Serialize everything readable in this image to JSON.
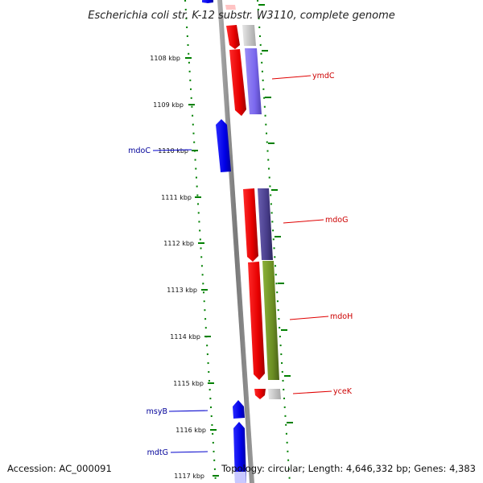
{
  "title": "Escherichia coli str. K-12 substr. W3110, complete genome",
  "footer": {
    "accession": "Accession: AC_000091",
    "topology": "Topology: circular; Length: 4,646,332 bp; Genes: 4,383"
  },
  "ticks": [
    "1108 kbp",
    "1109 kbp",
    "1110 kbp",
    "1111 kbp",
    "1112 kbp",
    "1113 kbp",
    "1114 kbp",
    "1115 kbp",
    "1116 kbp",
    "1117 kbp"
  ],
  "genes": {
    "ymdC": "ymdC",
    "mdoC": "mdoC",
    "mdoG": "mdoG",
    "mdoH": "mdoH",
    "yceK": "yceK",
    "msyB": "msyB",
    "mdtG": "mdtG"
  },
  "colors": {
    "forward_strand": "#ff0000",
    "reverse_strand": "#0000ff",
    "backbone": "#888888",
    "tick_marks": "#008000",
    "ymdC_feature": "#7b68ee",
    "mdoG_feature": "#483d8b",
    "mdoH_feature": "#6b8e23"
  }
}
